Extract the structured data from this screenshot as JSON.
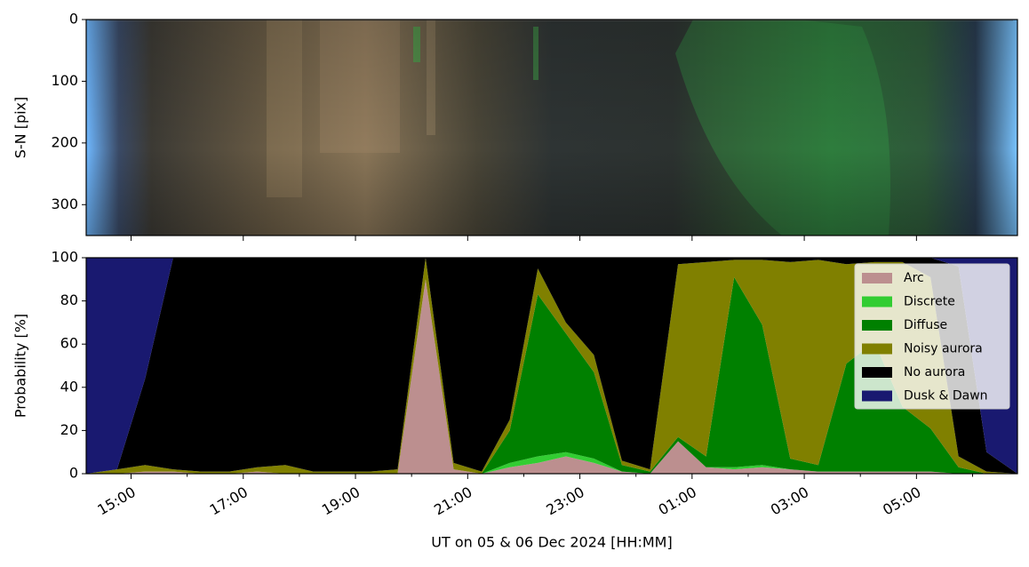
{
  "chart_data": [
    {
      "type": "image",
      "ylabel": "S-N [pix]",
      "ylim": [
        350,
        0
      ],
      "yticks": [
        0,
        100,
        200,
        300
      ],
      "xlim": [
        14.2,
        30.8
      ],
      "xticks": [
        {
          "value": 15,
          "label": "15:00"
        },
        {
          "value": 17,
          "label": "17:00"
        },
        {
          "value": 19,
          "label": "19:00"
        },
        {
          "value": 21,
          "label": "21:00"
        },
        {
          "value": 23,
          "label": "23:00"
        },
        {
          "value": 25,
          "label": "01:00"
        },
        {
          "value": 27,
          "label": "03:00"
        },
        {
          "value": 29,
          "label": "05:00"
        }
      ]
    },
    {
      "type": "stacked_area",
      "ylabel": "Probability [%]",
      "xlabel": "UT on 05 & 06 Dec 2024 [HH:MM]",
      "ylim": [
        0,
        100
      ],
      "yticks": [
        0,
        20,
        40,
        60,
        80,
        100
      ],
      "xlim": [
        14.2,
        30.8
      ],
      "xticks": [
        {
          "value": 15,
          "label": "15:00"
        },
        {
          "value": 17,
          "label": "17:00"
        },
        {
          "value": 19,
          "label": "19:00"
        },
        {
          "value": 21,
          "label": "21:00"
        },
        {
          "value": 23,
          "label": "23:00"
        },
        {
          "value": 25,
          "label": "01:00"
        },
        {
          "value": 27,
          "label": "03:00"
        },
        {
          "value": 29,
          "label": "05:00"
        }
      ],
      "xminor": [
        16,
        18,
        20,
        22,
        24,
        26,
        28,
        30
      ],
      "legend": "upper right",
      "x": [
        14.2,
        14.75,
        15.25,
        15.75,
        16.25,
        16.75,
        17.25,
        17.75,
        18.25,
        18.75,
        19.25,
        19.75,
        20.25,
        20.75,
        21.25,
        21.75,
        22.25,
        22.75,
        23.25,
        23.75,
        24.25,
        24.75,
        25.25,
        25.75,
        26.25,
        26.75,
        27.25,
        27.75,
        28.25,
        28.75,
        29.25,
        29.75,
        30.25,
        30.8
      ],
      "series": [
        {
          "name": "Arc",
          "color": "#bc8f8f",
          "values": [
            0,
            0,
            1,
            1,
            0,
            0,
            1,
            0,
            0,
            0,
            0,
            0,
            90,
            2,
            0,
            3,
            5,
            8,
            5,
            1,
            0,
            15,
            3,
            2,
            3,
            2,
            1,
            1,
            1,
            1,
            1,
            0,
            0,
            0
          ]
        },
        {
          "name": "Discrete",
          "color": "#32cd32",
          "values": [
            0,
            0,
            0,
            0,
            0,
            0,
            0,
            0,
            0,
            0,
            0,
            0,
            0,
            0,
            0,
            2,
            3,
            2,
            2,
            0,
            0,
            0,
            0,
            1,
            1,
            0,
            0,
            0,
            0,
            0,
            0,
            0,
            0,
            0
          ]
        },
        {
          "name": "Diffuse",
          "color": "#008000",
          "values": [
            0,
            0,
            0,
            0,
            0,
            0,
            0,
            0,
            0,
            0,
            0,
            0,
            0,
            0,
            0,
            15,
            75,
            55,
            40,
            3,
            1,
            2,
            5,
            88,
            65,
            5,
            3,
            50,
            60,
            30,
            20,
            3,
            0,
            0
          ]
        },
        {
          "name": "Noisy aurora",
          "color": "#808000",
          "values": [
            0,
            2,
            3,
            1,
            1,
            1,
            2,
            4,
            1,
            1,
            1,
            2,
            10,
            3,
            1,
            5,
            12,
            5,
            8,
            2,
            1,
            80,
            90,
            8,
            30,
            91,
            95,
            46,
            37,
            67,
            70,
            5,
            1,
            0
          ]
        },
        {
          "name": "No aurora",
          "color": "#000000",
          "values": [
            0,
            0,
            40,
            98,
            99,
            99,
            97,
            96,
            99,
            99,
            99,
            98,
            0,
            95,
            99,
            75,
            5,
            30,
            45,
            94,
            98,
            3,
            2,
            1,
            1,
            2,
            1,
            3,
            2,
            2,
            9,
            88,
            9,
            0
          ]
        },
        {
          "name": "Dusk & Dawn",
          "color": "#191970",
          "values": [
            100,
            98,
            56,
            0,
            0,
            0,
            0,
            0,
            0,
            0,
            0,
            0,
            0,
            0,
            0,
            0,
            0,
            0,
            0,
            0,
            0,
            0,
            0,
            0,
            0,
            0,
            0,
            0,
            0,
            0,
            0,
            4,
            90,
            100
          ]
        }
      ]
    }
  ]
}
